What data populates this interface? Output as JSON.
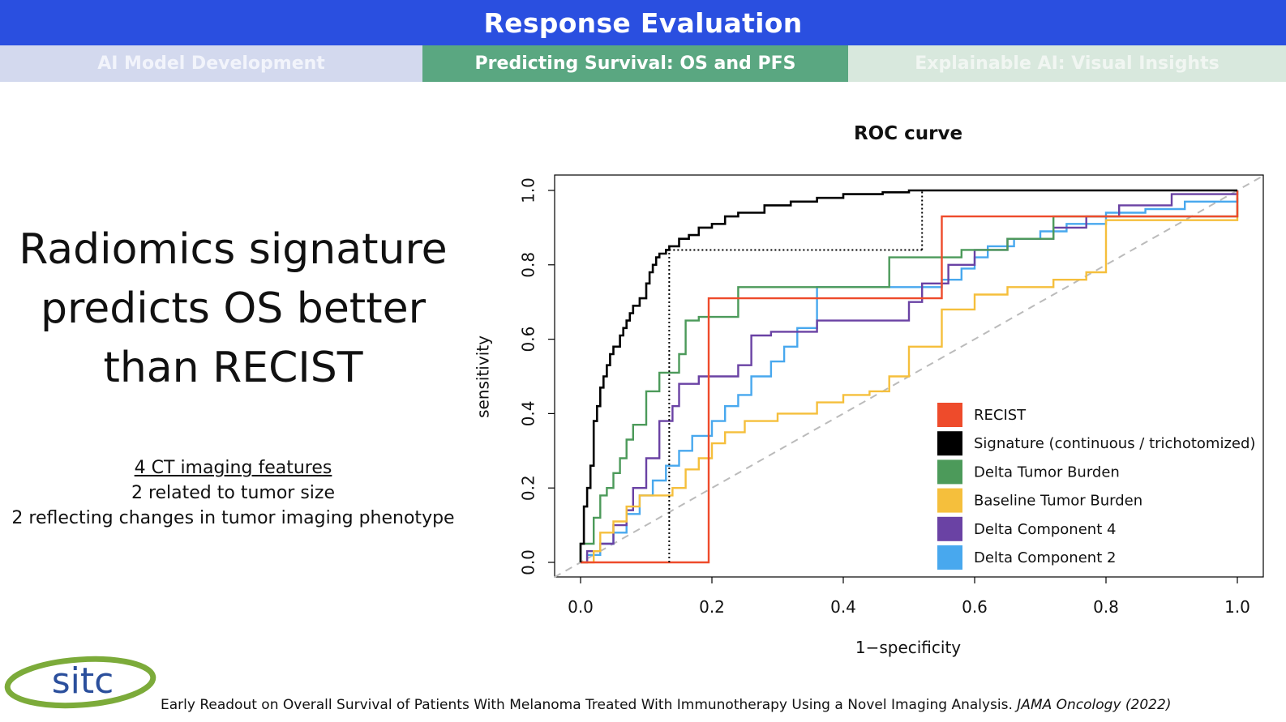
{
  "header": {
    "title": "Response Evaluation"
  },
  "tabs": [
    {
      "label": "AI Model Development"
    },
    {
      "label": "Predicting Survival: OS and PFS"
    },
    {
      "label": "Explainable AI: Visual Insights"
    }
  ],
  "headline": {
    "line1": "Radiomics signature",
    "line2": "predicts OS better",
    "line3": "than RECIST"
  },
  "features": {
    "heading": "4 CT imaging features",
    "line1": "2 related to tumor size",
    "line2": "2 reflecting changes in tumor imaging phenotype"
  },
  "footer": {
    "citation": "Early Readout on Overall Survival of Patients With Melanoma Treated With Immunotherapy Using a Novel Imaging Analysis.",
    "journal": "JAMA Oncology (2022)",
    "logo_text": "sitc"
  },
  "colors": {
    "header": "#2a4fe0",
    "recist": "#ee4b2b",
    "signature": "#000000",
    "delta_tumor_burden": "#4c9a5a",
    "baseline_tumor_burden": "#f5bf3c",
    "delta_component_4": "#6a42a4",
    "delta_component_2": "#48a8ee",
    "diagonal": "#bbbbbb",
    "logo_ring": "#7cab3a",
    "logo_text": "#2b4f9c"
  },
  "chart_data": {
    "type": "line",
    "title": "ROC curve",
    "xlabel": "1−specificity",
    "ylabel": "sensitivity",
    "xlim": [
      0,
      1
    ],
    "ylim": [
      0,
      1
    ],
    "xticks": [
      "0.0",
      "0.2",
      "0.4",
      "0.6",
      "0.8",
      "1.0"
    ],
    "yticks": [
      "0.0",
      "0.2",
      "0.4",
      "0.6",
      "0.8",
      "1.0"
    ],
    "grid": false,
    "legend_position": "bottom-right",
    "series": [
      {
        "name": "RECIST",
        "color": "#ee4b2b",
        "x": [
          0,
          0.195,
          0.195,
          0.55,
          0.55,
          1.0,
          1.0
        ],
        "y": [
          0,
          0,
          0.71,
          0.71,
          0.93,
          0.93,
          1.0
        ]
      },
      {
        "name": "Signature (continuous / trichotomized)",
        "color": "#000000",
        "x": [
          0,
          0,
          0.005,
          0.005,
          0.01,
          0.01,
          0.015,
          0.015,
          0.02,
          0.02,
          0.025,
          0.025,
          0.03,
          0.03,
          0.035,
          0.035,
          0.04,
          0.04,
          0.045,
          0.045,
          0.05,
          0.05,
          0.06,
          0.06,
          0.065,
          0.065,
          0.07,
          0.07,
          0.075,
          0.075,
          0.08,
          0.08,
          0.09,
          0.09,
          0.1,
          0.1,
          0.105,
          0.105,
          0.11,
          0.11,
          0.115,
          0.115,
          0.12,
          0.12,
          0.13,
          0.13,
          0.135,
          0.135,
          0.15,
          0.15,
          0.165,
          0.165,
          0.18,
          0.18,
          0.2,
          0.2,
          0.22,
          0.22,
          0.24,
          0.24,
          0.28,
          0.28,
          0.32,
          0.32,
          0.36,
          0.36,
          0.4,
          0.4,
          0.46,
          0.46,
          0.5,
          0.5,
          1.0
        ],
        "y": [
          0,
          0.05,
          0.05,
          0.15,
          0.15,
          0.2,
          0.2,
          0.26,
          0.26,
          0.38,
          0.38,
          0.42,
          0.42,
          0.47,
          0.47,
          0.5,
          0.5,
          0.53,
          0.53,
          0.56,
          0.56,
          0.58,
          0.58,
          0.61,
          0.61,
          0.63,
          0.63,
          0.65,
          0.65,
          0.67,
          0.67,
          0.69,
          0.69,
          0.71,
          0.71,
          0.75,
          0.75,
          0.78,
          0.78,
          0.8,
          0.8,
          0.82,
          0.82,
          0.83,
          0.83,
          0.84,
          0.84,
          0.85,
          0.85,
          0.87,
          0.87,
          0.88,
          0.88,
          0.9,
          0.9,
          0.91,
          0.91,
          0.93,
          0.93,
          0.94,
          0.94,
          0.96,
          0.96,
          0.97,
          0.97,
          0.98,
          0.98,
          0.99,
          0.99,
          0.995,
          0.995,
          1.0,
          1.0
        ]
      },
      {
        "name": "Delta Tumor Burden",
        "color": "#4c9a5a",
        "x": [
          0,
          0,
          0.02,
          0.02,
          0.03,
          0.03,
          0.04,
          0.04,
          0.05,
          0.05,
          0.06,
          0.06,
          0.07,
          0.07,
          0.08,
          0.08,
          0.1,
          0.1,
          0.12,
          0.12,
          0.15,
          0.15,
          0.16,
          0.16,
          0.18,
          0.18,
          0.24,
          0.24,
          0.47,
          0.47,
          0.58,
          0.58,
          0.65,
          0.65,
          0.72,
          0.72,
          1.0,
          1.0
        ],
        "y": [
          0,
          0.05,
          0.05,
          0.12,
          0.12,
          0.18,
          0.18,
          0.2,
          0.2,
          0.24,
          0.24,
          0.28,
          0.28,
          0.33,
          0.33,
          0.37,
          0.37,
          0.46,
          0.46,
          0.51,
          0.51,
          0.56,
          0.56,
          0.65,
          0.65,
          0.66,
          0.66,
          0.74,
          0.74,
          0.82,
          0.82,
          0.84,
          0.84,
          0.87,
          0.87,
          0.93,
          0.93,
          1.0
        ]
      },
      {
        "name": "Baseline Tumor Burden",
        "color": "#f5bf3c",
        "x": [
          0,
          0.02,
          0.02,
          0.03,
          0.03,
          0.05,
          0.05,
          0.07,
          0.07,
          0.09,
          0.09,
          0.14,
          0.14,
          0.16,
          0.16,
          0.18,
          0.18,
          0.2,
          0.2,
          0.22,
          0.22,
          0.25,
          0.25,
          0.3,
          0.3,
          0.36,
          0.36,
          0.4,
          0.4,
          0.44,
          0.44,
          0.47,
          0.47,
          0.5,
          0.5,
          0.55,
          0.55,
          0.6,
          0.6,
          0.65,
          0.65,
          0.72,
          0.72,
          0.77,
          0.77,
          0.8,
          0.8,
          1.0,
          1.0
        ],
        "y": [
          0,
          0,
          0.03,
          0.03,
          0.08,
          0.08,
          0.11,
          0.11,
          0.15,
          0.15,
          0.18,
          0.18,
          0.2,
          0.2,
          0.25,
          0.25,
          0.28,
          0.28,
          0.32,
          0.32,
          0.35,
          0.35,
          0.38,
          0.38,
          0.4,
          0.4,
          0.43,
          0.43,
          0.45,
          0.45,
          0.46,
          0.46,
          0.5,
          0.5,
          0.58,
          0.58,
          0.68,
          0.68,
          0.72,
          0.72,
          0.74,
          0.74,
          0.76,
          0.76,
          0.78,
          0.78,
          0.92,
          0.92,
          0.96
        ]
      },
      {
        "name": "Delta Component 4",
        "color": "#6a42a4",
        "x": [
          0,
          0.01,
          0.01,
          0.03,
          0.03,
          0.05,
          0.05,
          0.07,
          0.07,
          0.08,
          0.08,
          0.1,
          0.1,
          0.12,
          0.12,
          0.14,
          0.14,
          0.15,
          0.15,
          0.18,
          0.18,
          0.24,
          0.24,
          0.26,
          0.26,
          0.29,
          0.29,
          0.36,
          0.36,
          0.5,
          0.5,
          0.52,
          0.52,
          0.56,
          0.56,
          0.6,
          0.6,
          0.65,
          0.65,
          0.72,
          0.72,
          0.77,
          0.77,
          0.82,
          0.82,
          0.9,
          0.9,
          1.0,
          1.0
        ],
        "y": [
          0,
          0,
          0.03,
          0.03,
          0.05,
          0.05,
          0.1,
          0.1,
          0.14,
          0.14,
          0.2,
          0.2,
          0.28,
          0.28,
          0.38,
          0.38,
          0.42,
          0.42,
          0.48,
          0.48,
          0.5,
          0.5,
          0.53,
          0.53,
          0.61,
          0.61,
          0.62,
          0.62,
          0.65,
          0.65,
          0.7,
          0.7,
          0.75,
          0.75,
          0.8,
          0.8,
          0.84,
          0.84,
          0.87,
          0.87,
          0.9,
          0.9,
          0.93,
          0.93,
          0.96,
          0.96,
          0.99,
          0.99,
          1.0
        ]
      },
      {
        "name": "Delta Component 2",
        "color": "#48a8ee",
        "x": [
          0,
          0.01,
          0.01,
          0.03,
          0.03,
          0.05,
          0.05,
          0.07,
          0.07,
          0.09,
          0.09,
          0.11,
          0.11,
          0.13,
          0.13,
          0.15,
          0.15,
          0.17,
          0.17,
          0.2,
          0.2,
          0.22,
          0.22,
          0.24,
          0.24,
          0.26,
          0.26,
          0.29,
          0.29,
          0.31,
          0.31,
          0.33,
          0.33,
          0.36,
          0.36,
          0.55,
          0.55,
          0.58,
          0.58,
          0.6,
          0.6,
          0.62,
          0.62,
          0.66,
          0.66,
          0.7,
          0.7,
          0.74,
          0.74,
          0.8,
          0.8,
          0.86,
          0.86,
          0.92,
          0.92,
          1.0,
          1.0
        ],
        "y": [
          0,
          0,
          0.02,
          0.02,
          0.05,
          0.05,
          0.08,
          0.08,
          0.13,
          0.13,
          0.18,
          0.18,
          0.22,
          0.22,
          0.26,
          0.26,
          0.3,
          0.3,
          0.34,
          0.34,
          0.38,
          0.38,
          0.42,
          0.42,
          0.45,
          0.45,
          0.5,
          0.5,
          0.54,
          0.54,
          0.58,
          0.58,
          0.63,
          0.63,
          0.74,
          0.74,
          0.76,
          0.76,
          0.79,
          0.79,
          0.82,
          0.82,
          0.85,
          0.85,
          0.87,
          0.87,
          0.89,
          0.89,
          0.91,
          0.91,
          0.94,
          0.94,
          0.95,
          0.95,
          0.97,
          0.97,
          0.98
        ]
      }
    ],
    "dotted_lines": [
      {
        "x": [
          0.135,
          0.135
        ],
        "y": [
          0,
          0.84
        ]
      },
      {
        "x": [
          0.135,
          0.52
        ],
        "y": [
          0.84,
          0.84
        ]
      },
      {
        "x": [
          0.52,
          0.52
        ],
        "y": [
          0.84,
          1.0
        ]
      }
    ],
    "reference_line": {
      "x": [
        0,
        1
      ],
      "y": [
        0,
        1
      ]
    }
  }
}
